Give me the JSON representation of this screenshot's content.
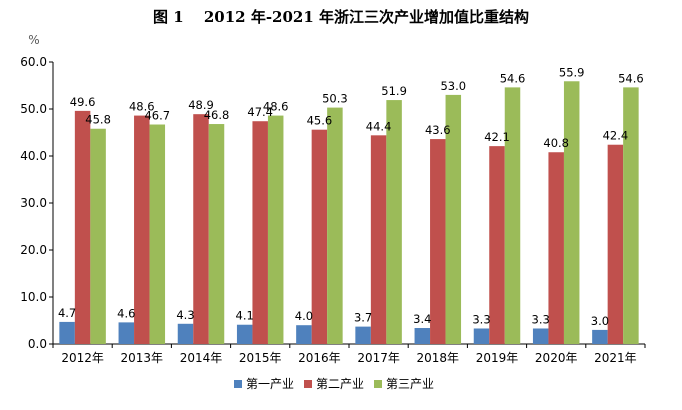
{
  "chart_data": {
    "type": "bar",
    "title": "图 1　 2012 年-2021 年浙江三次产业增加值比重结构",
    "unit": "%",
    "categories": [
      "2012年",
      "2013年",
      "2014年",
      "2015年",
      "2016年",
      "2017年",
      "2018年",
      "2019年",
      "2020年",
      "2021年"
    ],
    "series": [
      {
        "name": "第一产业",
        "color": "#4f81bd",
        "values": [
          4.7,
          4.6,
          4.3,
          4.1,
          4.0,
          3.7,
          3.4,
          3.3,
          3.3,
          3.0
        ]
      },
      {
        "name": "第二产业",
        "color": "#c0504d",
        "values": [
          49.6,
          48.6,
          48.9,
          47.4,
          45.6,
          44.4,
          43.6,
          42.1,
          40.8,
          42.4
        ]
      },
      {
        "name": "第三产业",
        "color": "#9bbb59",
        "values": [
          45.8,
          46.7,
          46.8,
          48.6,
          50.3,
          51.9,
          53.0,
          54.6,
          55.9,
          54.6
        ]
      }
    ],
    "ylim": [
      0,
      60
    ],
    "yticks": [
      "0.0",
      "10.0",
      "20.0",
      "30.0",
      "40.0",
      "50.0",
      "60.0"
    ],
    "ytick_values": [
      0,
      10,
      20,
      30,
      40,
      50,
      60
    ],
    "grid": false,
    "legend_position": "bottom"
  }
}
